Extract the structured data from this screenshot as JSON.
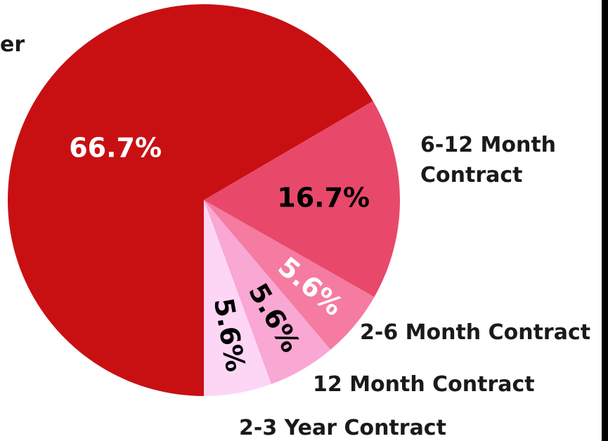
{
  "chart_data": {
    "type": "pie",
    "categories": [
      "er",
      "6-12 Month Contract",
      "2-6 Month Contract",
      "12 Month Contract",
      "2-3 Year Contract"
    ],
    "values": [
      66.7,
      16.7,
      5.6,
      5.6,
      5.6
    ],
    "value_labels": [
      "66.7%",
      "16.7%",
      "5.6%",
      "5.6%",
      "5.6%"
    ],
    "colors": [
      "#c81013",
      "#e8496a",
      "#f57ba1",
      "#f9a7d3",
      "#fdd6f6"
    ],
    "label_colors": [
      "#ffffff",
      "#000000",
      "#ffffff",
      "#000000",
      "#000000"
    ]
  }
}
